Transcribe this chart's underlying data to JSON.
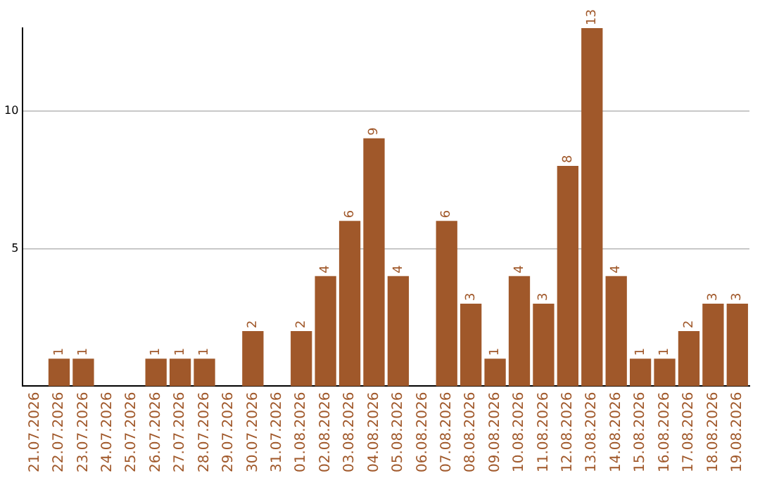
{
  "chart_data": {
    "type": "bar",
    "categories": [
      "21.07.2026",
      "22.07.2026",
      "23.07.2026",
      "24.07.2026",
      "25.07.2026",
      "26.07.2026",
      "27.07.2026",
      "28.07.2026",
      "29.07.2026",
      "30.07.2026",
      "31.07.2026",
      "01.08.2026",
      "02.08.2026",
      "03.08.2026",
      "04.08.2026",
      "05.08.2026",
      "06.08.2026",
      "07.08.2026",
      "08.08.2026",
      "09.08.2026",
      "10.08.2026",
      "11.08.2026",
      "12.08.2026",
      "13.08.2026",
      "14.08.2026",
      "15.08.2026",
      "16.08.2026",
      "17.08.2026",
      "18.08.2026",
      "19.08.2026"
    ],
    "values": [
      0,
      1,
      1,
      0,
      0,
      1,
      1,
      1,
      0,
      2,
      0,
      2,
      4,
      6,
      9,
      4,
      0,
      6,
      3,
      1,
      4,
      3,
      8,
      13,
      4,
      1,
      1,
      2,
      3,
      3
    ],
    "value_labels": [
      null,
      "1",
      "1",
      null,
      null,
      "1",
      "1",
      "1",
      null,
      "2",
      null,
      "2",
      "4",
      "6",
      "9",
      "4",
      null,
      "6",
      "3",
      "1",
      "4",
      "3",
      "8",
      "13",
      "4",
      "1",
      "1",
      "2",
      "3",
      "3"
    ],
    "color": "#a0582a",
    "ylim": [
      0,
      13
    ],
    "yticks": [
      5,
      10
    ],
    "grid": "y"
  }
}
